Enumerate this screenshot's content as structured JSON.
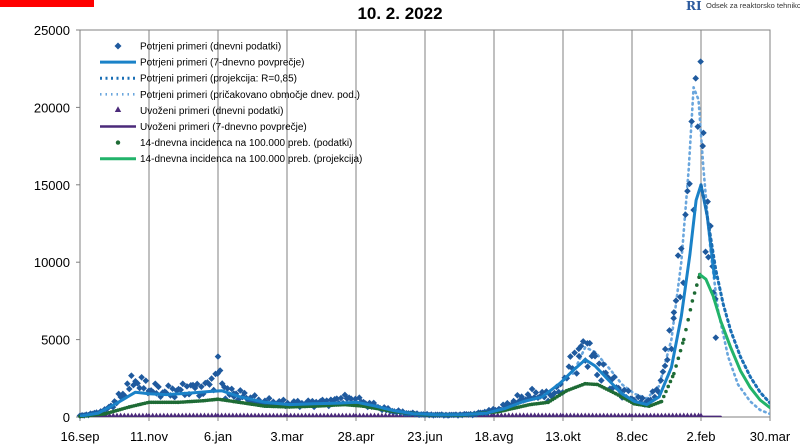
{
  "header": {
    "title": "10. 2. 2022",
    "logo_mark": "RI",
    "logo_text": "Odsek za reaktorsko tehniko"
  },
  "chart_data": {
    "type": "line",
    "title": "10. 2. 2022",
    "xlabel": "",
    "ylabel": "",
    "x_ticks": [
      "16.sep",
      "11.nov",
      "6.jan",
      "3.mar",
      "28.apr",
      "23.jun",
      "18.avg",
      "13.okt",
      "8.dec",
      "2.feb",
      "30.mar"
    ],
    "x_tick_days": [
      0,
      56,
      112,
      168,
      224,
      280,
      336,
      392,
      448,
      504,
      560
    ],
    "ylim": [
      0,
      25000
    ],
    "y_ticks": [
      0,
      5000,
      10000,
      15000,
      20000,
      25000
    ],
    "grid": "vertical lines at x ticks",
    "legend_position": "top-left",
    "colors": {
      "confirmed_daily": "#1f5a9e",
      "confirmed_avg": "#1a82c8",
      "projection": "#1a6fb5",
      "expected_range": "#6aa6dd",
      "imported": "#4b2a7a",
      "incidence": "#1e6b35",
      "incidence_proj": "#22b36a"
    },
    "series": [
      {
        "name": "Potrjeni primeri (dnevni podatki)",
        "style": "diamond-markers",
        "points": [
          [
            0,
            80
          ],
          [
            10,
            200
          ],
          [
            20,
            400
          ],
          [
            28,
            900
          ],
          [
            35,
            1500
          ],
          [
            40,
            2000
          ],
          [
            45,
            2400
          ],
          [
            50,
            2100
          ],
          [
            56,
            1800
          ],
          [
            62,
            1700
          ],
          [
            70,
            1600
          ],
          [
            80,
            1700
          ],
          [
            90,
            1900
          ],
          [
            100,
            1800
          ],
          [
            110,
            2500
          ],
          [
            112,
            3300
          ],
          [
            118,
            1600
          ],
          [
            125,
            1500
          ],
          [
            135,
            1300
          ],
          [
            145,
            1000
          ],
          [
            160,
            900
          ],
          [
            175,
            850
          ],
          [
            190,
            900
          ],
          [
            205,
            1000
          ],
          [
            215,
            1200
          ],
          [
            225,
            1050
          ],
          [
            235,
            800
          ],
          [
            250,
            450
          ],
          [
            265,
            250
          ],
          [
            280,
            150
          ],
          [
            300,
            120
          ],
          [
            320,
            180
          ],
          [
            340,
            500
          ],
          [
            355,
            1100
          ],
          [
            370,
            1500
          ],
          [
            380,
            1300
          ],
          [
            390,
            1800
          ],
          [
            398,
            3300
          ],
          [
            405,
            4100
          ],
          [
            412,
            4400
          ],
          [
            418,
            3600
          ],
          [
            425,
            2800
          ],
          [
            432,
            2200
          ],
          [
            440,
            1600
          ],
          [
            448,
            1200
          ],
          [
            458,
            950
          ],
          [
            468,
            1500
          ],
          [
            475,
            3500
          ],
          [
            482,
            6500
          ],
          [
            488,
            10000
          ],
          [
            493,
            13500
          ],
          [
            498,
            17500
          ],
          [
            502,
            24200
          ],
          [
            506,
            16500
          ],
          [
            510,
            12000
          ],
          [
            514,
            8500
          ],
          [
            516,
            7000
          ]
        ]
      },
      {
        "name": "Potrjeni primeri (7-dnevno povprečje)",
        "style": "solid",
        "points": [
          [
            0,
            60
          ],
          [
            15,
            250
          ],
          [
            30,
            900
          ],
          [
            45,
            1600
          ],
          [
            56,
            1500
          ],
          [
            70,
            1450
          ],
          [
            90,
            1550
          ],
          [
            105,
            1650
          ],
          [
            115,
            1700
          ],
          [
            130,
            1300
          ],
          [
            150,
            950
          ],
          [
            170,
            800
          ],
          [
            190,
            850
          ],
          [
            210,
            900
          ],
          [
            225,
            950
          ],
          [
            240,
            700
          ],
          [
            255,
            400
          ],
          [
            270,
            220
          ],
          [
            290,
            150
          ],
          [
            310,
            150
          ],
          [
            330,
            250
          ],
          [
            345,
            550
          ],
          [
            360,
            1000
          ],
          [
            375,
            1300
          ],
          [
            390,
            2200
          ],
          [
            400,
            3000
          ],
          [
            410,
            3700
          ],
          [
            418,
            3300
          ],
          [
            430,
            2300
          ],
          [
            440,
            1500
          ],
          [
            450,
            1000
          ],
          [
            460,
            800
          ],
          [
            470,
            1300
          ],
          [
            480,
            3200
          ],
          [
            488,
            6500
          ],
          [
            495,
            10500
          ],
          [
            500,
            14000
          ],
          [
            504,
            15000
          ],
          [
            509,
            13000
          ],
          [
            515,
            9000
          ]
        ]
      },
      {
        "name": "Potrjeni primeri (projekcija: R=0,85)",
        "style": "dotted",
        "points": [
          [
            504,
            15000
          ],
          [
            508,
            13500
          ],
          [
            512,
            11500
          ],
          [
            516,
            9500
          ],
          [
            522,
            7300
          ],
          [
            528,
            5600
          ],
          [
            536,
            3900
          ],
          [
            544,
            2600
          ],
          [
            552,
            1600
          ],
          [
            560,
            900
          ]
        ]
      },
      {
        "name": "Potrjeni primeri (pričakovano območje dnev. pod.)",
        "style": "dotted-light",
        "points": [
          [
            400,
            2800
          ],
          [
            410,
            4500
          ],
          [
            418,
            4200
          ],
          [
            430,
            3100
          ],
          [
            440,
            2100
          ],
          [
            450,
            1500
          ],
          [
            460,
            1200
          ],
          [
            470,
            2000
          ],
          [
            480,
            5000
          ],
          [
            488,
            10000
          ],
          [
            494,
            16000
          ],
          [
            498,
            21300
          ],
          [
            502,
            20500
          ],
          [
            506,
            16000
          ],
          [
            512,
            10500
          ],
          [
            518,
            6800
          ],
          [
            526,
            3900
          ],
          [
            534,
            2100
          ],
          [
            544,
            1000
          ],
          [
            552,
            450
          ],
          [
            560,
            200
          ]
        ]
      },
      {
        "name": "Uvoženi primeri (dnevni podatki)",
        "style": "triangle-markers",
        "points": [
          [
            0,
            20
          ],
          [
            56,
            10
          ],
          [
            112,
            20
          ],
          [
            168,
            10
          ],
          [
            224,
            10
          ],
          [
            280,
            20
          ],
          [
            336,
            30
          ],
          [
            392,
            20
          ],
          [
            448,
            10
          ],
          [
            504,
            20
          ]
        ]
      },
      {
        "name": "Uvoženi primeri (7-dnevno povprečje)",
        "style": "solid-purple",
        "points": [
          [
            0,
            10
          ],
          [
            520,
            10
          ]
        ]
      },
      {
        "name": "14-dnevna incidenca na 100.000 preb. (podatki)",
        "style": "dot-markers",
        "points": [
          [
            0,
            40
          ],
          [
            20,
            200
          ],
          [
            40,
            650
          ],
          [
            56,
            950
          ],
          [
            80,
            950
          ],
          [
            100,
            1050
          ],
          [
            112,
            1150
          ],
          [
            125,
            1000
          ],
          [
            150,
            700
          ],
          [
            170,
            650
          ],
          [
            190,
            700
          ],
          [
            215,
            800
          ],
          [
            230,
            700
          ],
          [
            255,
            350
          ],
          [
            280,
            150
          ],
          [
            310,
            120
          ],
          [
            340,
            350
          ],
          [
            365,
            800
          ],
          [
            380,
            950
          ],
          [
            395,
            1700
          ],
          [
            410,
            2150
          ],
          [
            420,
            2100
          ],
          [
            435,
            1500
          ],
          [
            450,
            850
          ],
          [
            462,
            700
          ],
          [
            472,
            1000
          ],
          [
            482,
            2800
          ],
          [
            490,
            5000
          ],
          [
            497,
            7500
          ],
          [
            503,
            9200
          ]
        ]
      },
      {
        "name": "14-dnevna incidenca na 100.000 preb. (projekcija)",
        "style": "solid-green",
        "points": [
          [
            503,
            9200
          ],
          [
            508,
            8900
          ],
          [
            514,
            7800
          ],
          [
            520,
            6200
          ],
          [
            528,
            4500
          ],
          [
            536,
            3000
          ],
          [
            544,
            1900
          ],
          [
            552,
            1100
          ],
          [
            560,
            600
          ]
        ]
      }
    ]
  }
}
